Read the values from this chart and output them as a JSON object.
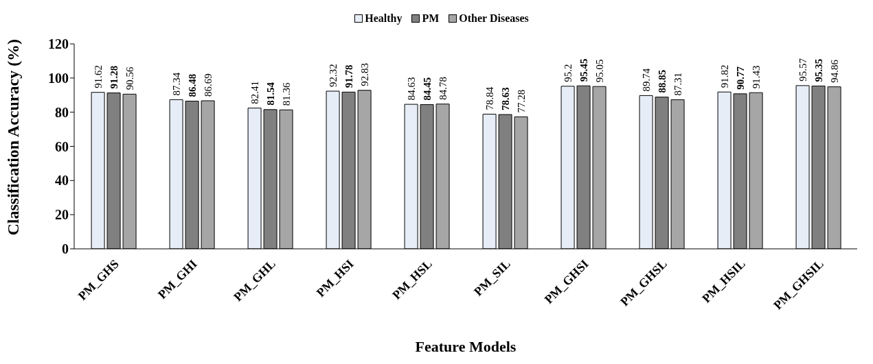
{
  "chart_data": {
    "type": "bar",
    "xlabel": "Feature Models",
    "ylabel": "Classification Accuracy (%)",
    "categories": [
      "PM_GHS",
      "PM_GHI",
      "PM_GHL",
      "PM_HSI",
      "PM_HSL",
      "PM_SIL",
      "PM_GHSI",
      "PM_GHSL",
      "PM_HSIL",
      "PM_GHSIL"
    ],
    "series": [
      {
        "name": "Healthy",
        "color": "#e6edf7",
        "values": [
          91.62,
          87.34,
          82.41,
          92.32,
          84.63,
          78.84,
          95.2,
          89.74,
          91.82,
          95.57
        ]
      },
      {
        "name": "PM",
        "color": "#808080",
        "values": [
          91.28,
          86.48,
          81.54,
          91.78,
          84.45,
          78.63,
          95.45,
          88.85,
          90.77,
          95.35
        ]
      },
      {
        "name": "Other Diseases",
        "color": "#a6a6a6",
        "values": [
          90.56,
          86.69,
          81.36,
          92.83,
          84.78,
          77.28,
          95.05,
          87.31,
          91.43,
          94.86
        ]
      }
    ],
    "ylim": [
      0,
      120
    ],
    "yticks": [
      0,
      20,
      40,
      60,
      80,
      100,
      120
    ],
    "legend": "top",
    "data_labels": true
  }
}
